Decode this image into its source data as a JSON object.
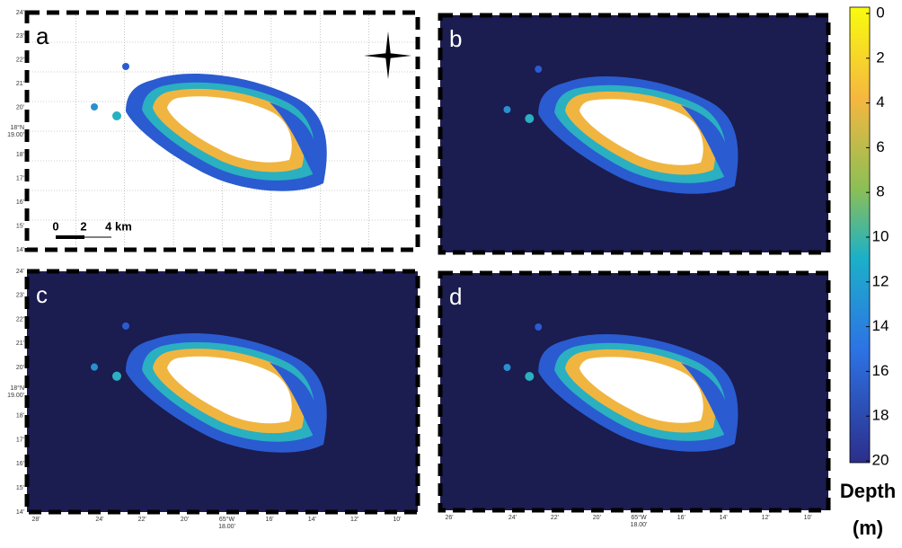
{
  "panels": [
    {
      "label": "a"
    },
    {
      "label": "b"
    },
    {
      "label": "c"
    },
    {
      "label": "d"
    }
  ],
  "lat_labels": [
    "24'",
    "23'",
    "22'",
    "21'",
    "20'",
    "18'",
    "17'",
    "16'",
    "15'",
    "14'"
  ],
  "lat_center": {
    "deg": "18°N",
    "min": "19.00'"
  },
  "lon_labels_c": [
    "28'",
    "24'",
    "22'",
    "20'",
    "16'",
    "14'",
    "12'",
    "10'"
  ],
  "lon_labels_d": [
    "26'",
    "24'",
    "22'",
    "20'",
    "16'",
    "14'",
    "12'",
    "10'"
  ],
  "lon_center": {
    "deg": "65°W",
    "min": "18.00'"
  },
  "scale_bar": {
    "zero": "0",
    "mid": "2",
    "end": "4 km"
  },
  "colorbar": {
    "ticks": [
      0,
      2,
      4,
      6,
      8,
      10,
      12,
      14,
      16,
      18,
      20
    ],
    "title": "Depth",
    "unit": "(m)"
  }
}
